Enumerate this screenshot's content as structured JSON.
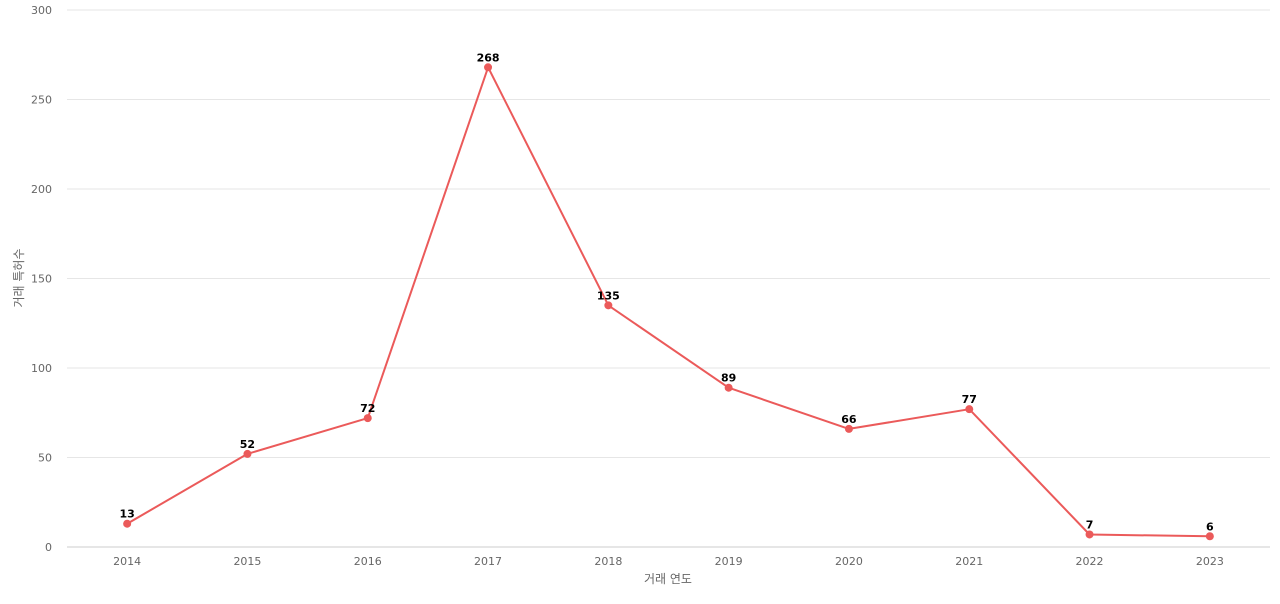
{
  "chart_data": {
    "type": "line",
    "x": [
      "2014",
      "2015",
      "2016",
      "2017",
      "2018",
      "2019",
      "2020",
      "2021",
      "2022",
      "2023"
    ],
    "series": [
      {
        "values": [
          13,
          52,
          72,
          268,
          135,
          89,
          66,
          77,
          7,
          6
        ]
      }
    ],
    "title": "",
    "xlabel": "거래 연도",
    "ylabel": "거래 특허수",
    "ylim": [
      0,
      300
    ],
    "yticks": [
      0,
      50,
      100,
      150,
      200,
      250,
      300
    ],
    "grid": true,
    "data_labels": true,
    "legend": "none",
    "colors": {
      "line": "#eb5a5a",
      "grid": "#e6e6e6",
      "axis": "#cccccc",
      "tick_text": "#666666",
      "label_text": "#000000"
    }
  }
}
